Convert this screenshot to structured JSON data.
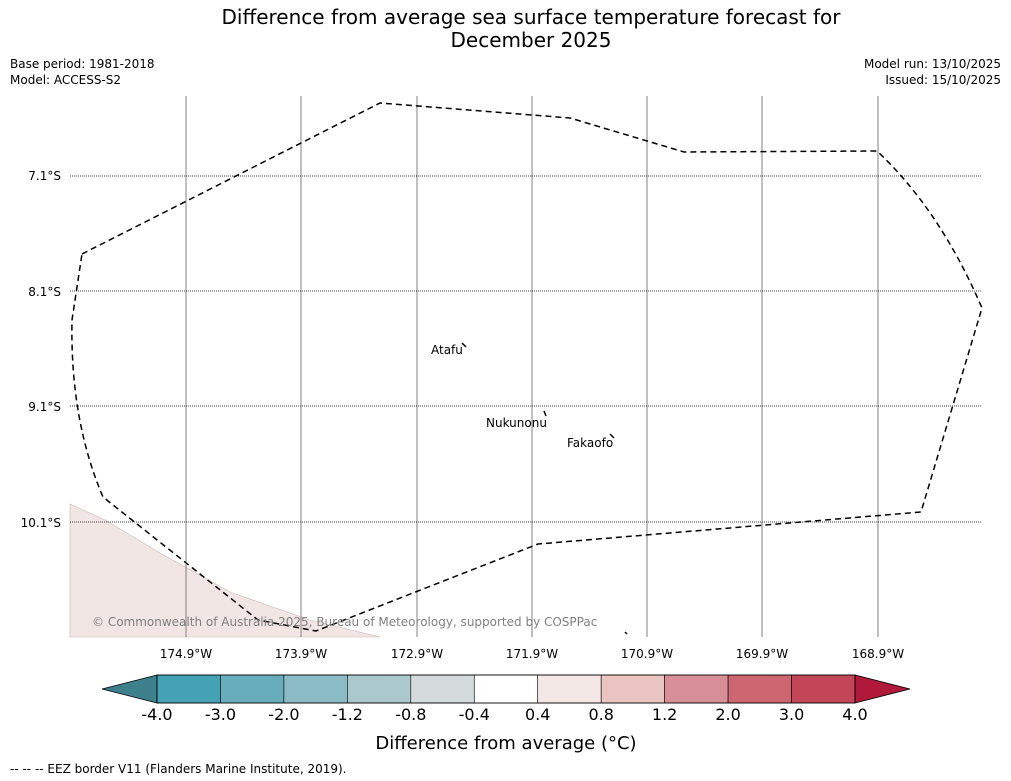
{
  "header": {
    "title_line1": "Difference from average sea surface temperature forecast for",
    "title_line2": "December 2025",
    "base_period": "Base period: 1981-2018",
    "model": "Model: ACCESS-S2",
    "model_run": "Model run: 13/10/2025",
    "issued": "Issued: 15/10/2025"
  },
  "map": {
    "lat_labels": [
      "7.1°S",
      "8.1°S",
      "9.1°S",
      "10.1°S"
    ],
    "lon_labels": [
      "174.9°W",
      "173.9°W",
      "172.9°W",
      "171.9°W",
      "170.9°W",
      "169.9°W",
      "168.9°W"
    ],
    "places": [
      "Atafu",
      "Nukunonu",
      "Fakaofo"
    ],
    "copyright": "© Commonwealth of Australia 2025, Bureau of Meteorology, supported by COSPPac",
    "colors": {
      "shaded_region": "#f2e6e4",
      "eez_border": "#000000"
    }
  },
  "colorbar": {
    "ticks": [
      "-4.0",
      "-3.0",
      "-2.0",
      "-1.2",
      "-0.8",
      "-0.4",
      "0.4",
      "0.8",
      "1.2",
      "2.0",
      "3.0",
      "4.0"
    ],
    "colors": [
      "#45a2b4",
      "#68adbc",
      "#8cbcc5",
      "#abc9cd",
      "#d4d9db",
      "#ffffff",
      "#f4e8e6",
      "#e9c4c0",
      "#d88e96",
      "#cd6670",
      "#c24558"
    ],
    "under_color": "#3d7f8b",
    "over_color": "#b0193a",
    "label": "Difference from average (°C)"
  },
  "footer": {
    "legend": "--  --  -- EEZ border V11 (Flanders Marine Institute, 2019)."
  }
}
